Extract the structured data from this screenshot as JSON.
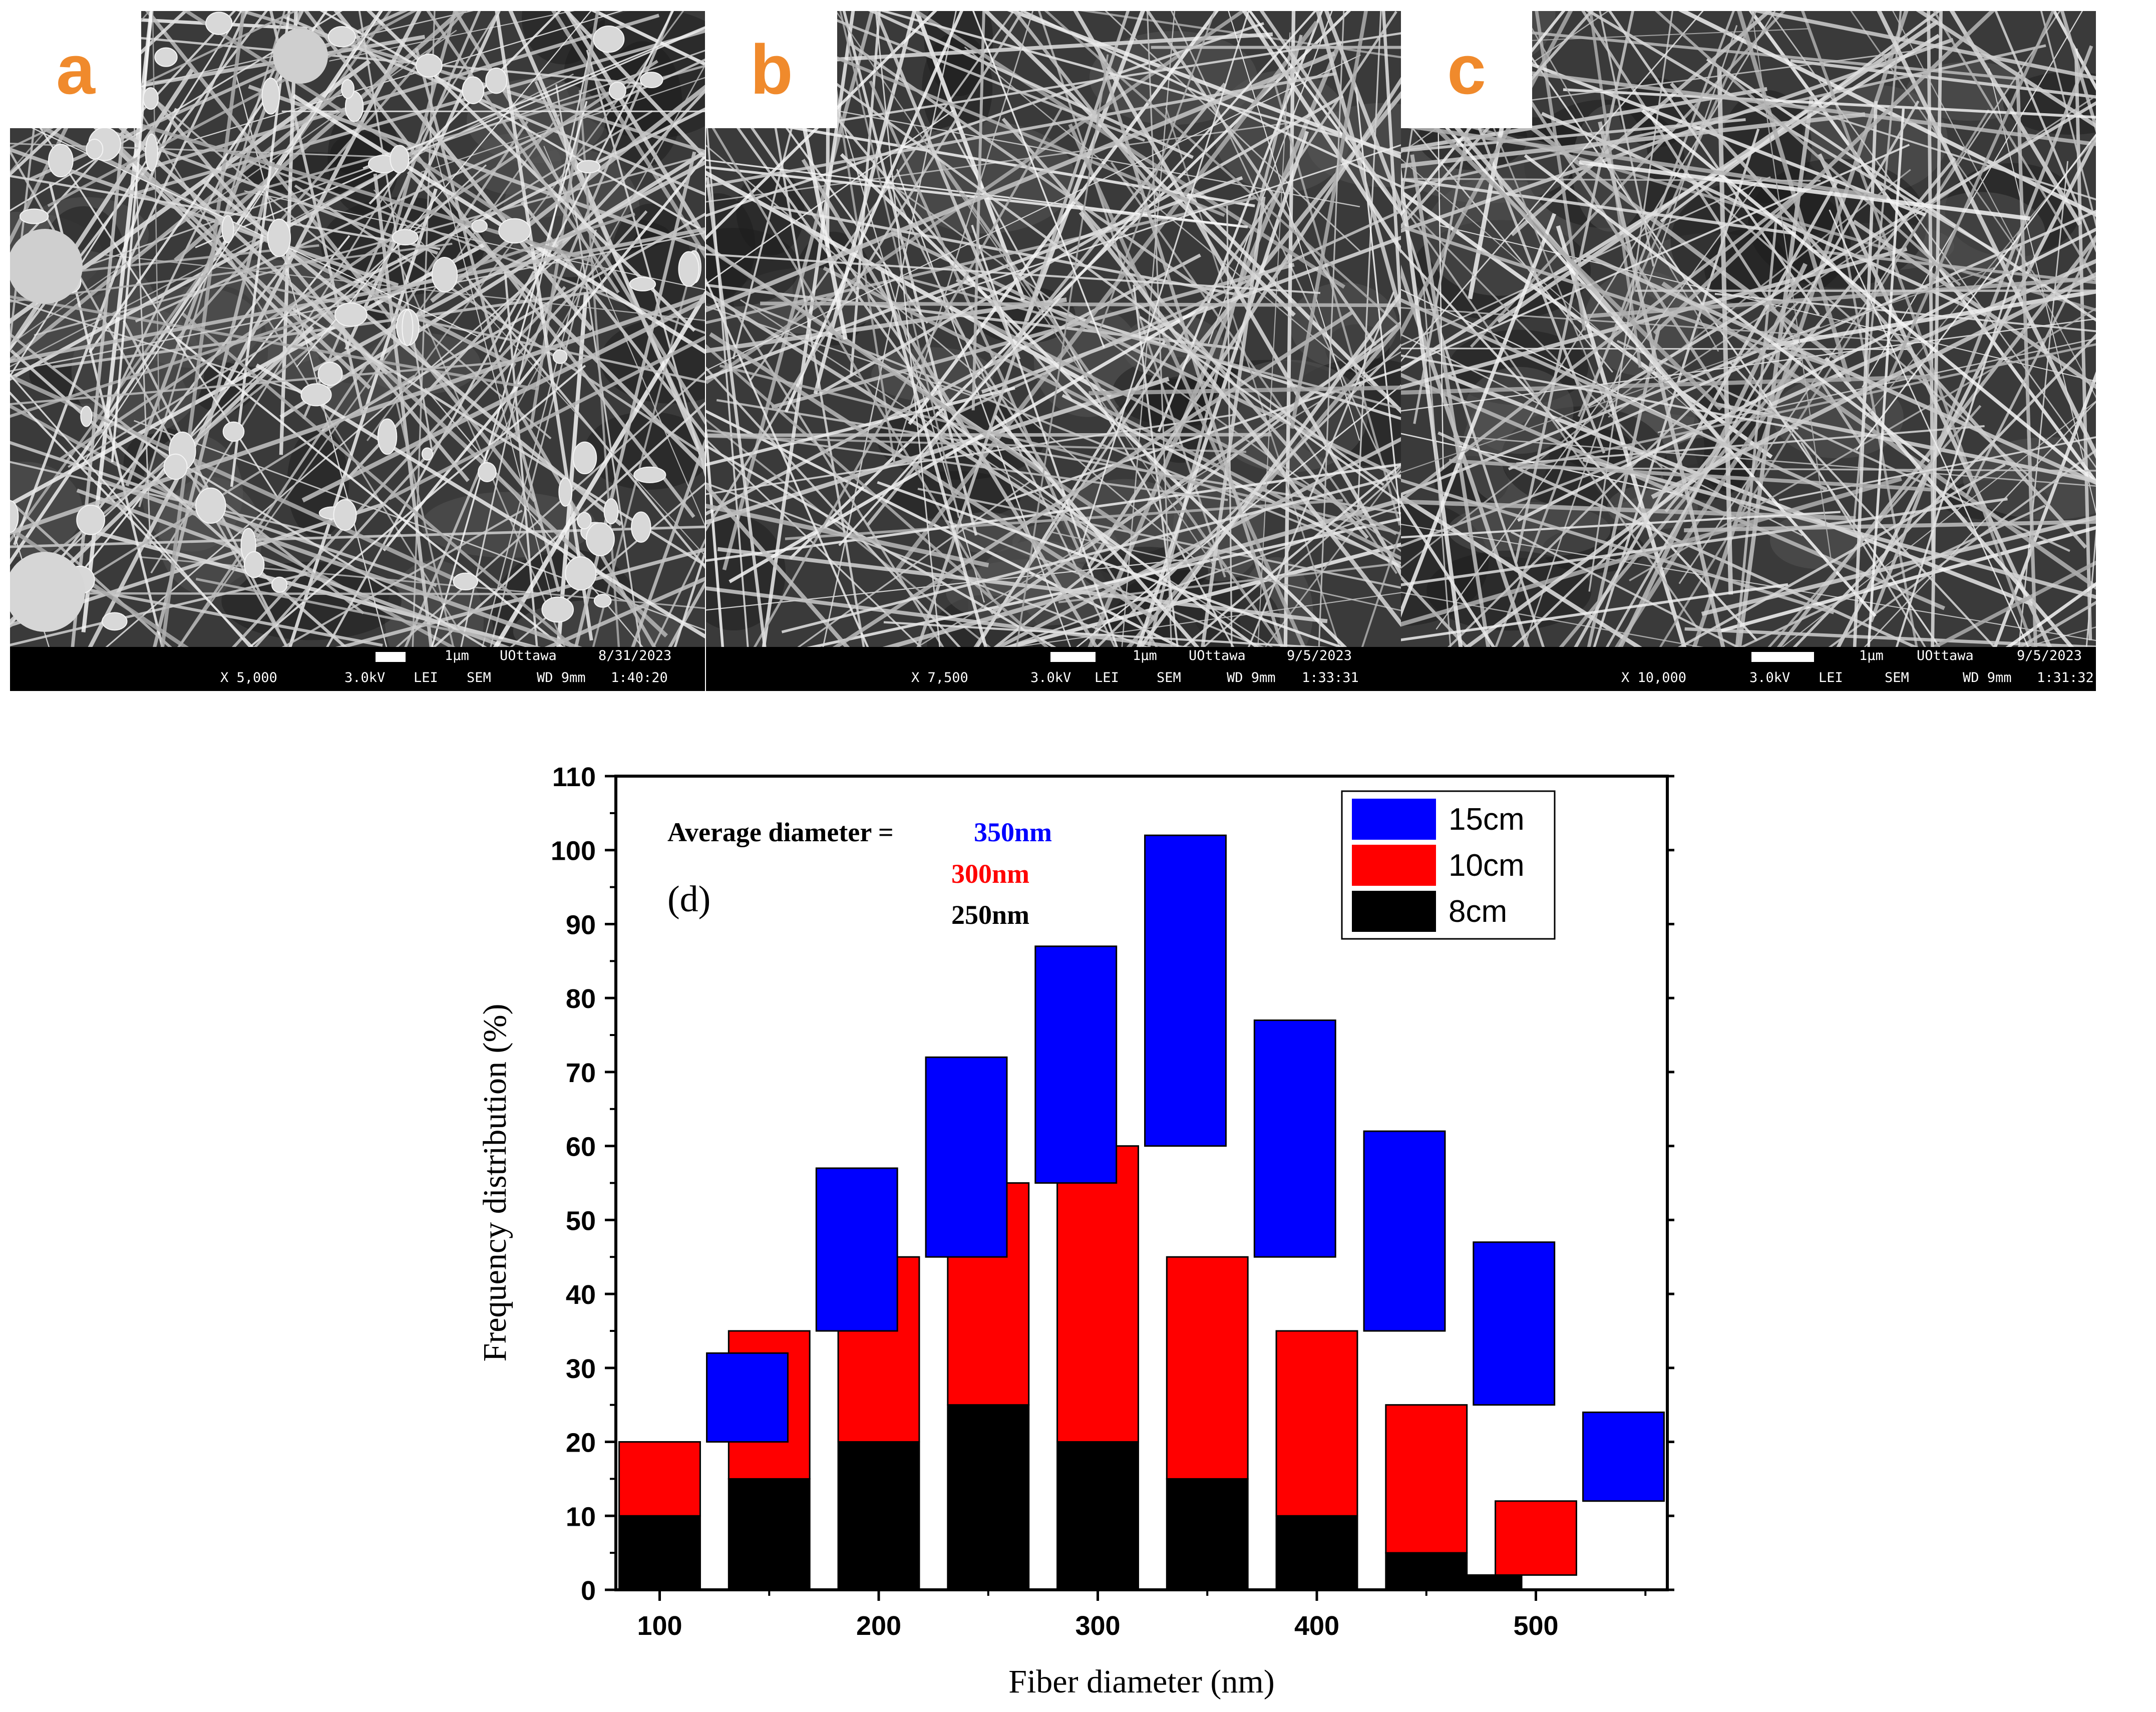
{
  "panels": [
    {
      "label": "a",
      "scale": "1μm",
      "institution": "UOttawa",
      "date": "8/31/2023",
      "magnification": "X 5,000",
      "voltage": "3.0kV",
      "detector": "LEI",
      "mode": "SEM",
      "wd": "WD 9mm",
      "time": "1:40:20"
    },
    {
      "label": "b",
      "scale": "1μm",
      "institution": "UOttawa",
      "date": "9/5/2023",
      "magnification": "X 7,500",
      "voltage": "3.0kV",
      "detector": "LEI",
      "mode": "SEM",
      "wd": "WD 9mm",
      "time": "1:33:31"
    },
    {
      "label": "c",
      "scale": "1μm",
      "institution": "UOttawa",
      "date": "9/5/2023",
      "magnification": "X 10,000",
      "voltage": "3.0kV",
      "detector": "LEI",
      "mode": "SEM",
      "wd": "WD 9mm",
      "time": "1:31:32"
    }
  ],
  "chart_data": {
    "type": "bar",
    "title": "",
    "panel_label": "(d)",
    "xlabel": "Fiber diameter (nm)",
    "ylabel": "Frequency distribution (%)",
    "xlim": [
      80,
      560
    ],
    "ylim": [
      0,
      110
    ],
    "xticks": [
      "100",
      "200",
      "300",
      "400",
      "500"
    ],
    "yticks": [
      "0",
      "10",
      "20",
      "30",
      "40",
      "50",
      "60",
      "70",
      "80",
      "90",
      "100",
      "110"
    ],
    "grid": false,
    "legend_position": "top-right",
    "annotation": {
      "label": "Average diameter =",
      "values": [
        "350nm",
        "300nm",
        "250nm"
      ]
    },
    "series": [
      {
        "name": "15cm",
        "color": "#0000ff",
        "bars": [
          {
            "x": 140,
            "low": 20,
            "high": 32
          },
          {
            "x": 190,
            "low": 35,
            "high": 57
          },
          {
            "x": 240,
            "low": 45,
            "high": 72
          },
          {
            "x": 290,
            "low": 55,
            "high": 87
          },
          {
            "x": 340,
            "low": 60,
            "high": 102
          },
          {
            "x": 390,
            "low": 45,
            "high": 77
          },
          {
            "x": 440,
            "low": 35,
            "high": 62
          },
          {
            "x": 490,
            "low": 25,
            "high": 47
          },
          {
            "x": 540,
            "low": 12,
            "high": 24
          }
        ]
      },
      {
        "name": "10cm",
        "color": "#ff0000",
        "bars": [
          {
            "x": 100,
            "low": 10,
            "high": 20
          },
          {
            "x": 150,
            "low": 15,
            "high": 35
          },
          {
            "x": 200,
            "low": 20,
            "high": 45
          },
          {
            "x": 250,
            "low": 25,
            "high": 55
          },
          {
            "x": 300,
            "low": 20,
            "high": 60
          },
          {
            "x": 350,
            "low": 15,
            "high": 45
          },
          {
            "x": 400,
            "low": 10,
            "high": 35
          },
          {
            "x": 450,
            "low": 5,
            "high": 25
          },
          {
            "x": 500,
            "low": 2,
            "high": 12
          }
        ]
      },
      {
        "name": "8cm",
        "color": "#000000",
        "bars": [
          {
            "x": 100,
            "low": 0,
            "high": 10
          },
          {
            "x": 150,
            "low": 0,
            "high": 15
          },
          {
            "x": 200,
            "low": 0,
            "high": 20
          },
          {
            "x": 250,
            "low": 0,
            "high": 25
          },
          {
            "x": 300,
            "low": 0,
            "high": 20
          },
          {
            "x": 350,
            "low": 0,
            "high": 15
          },
          {
            "x": 400,
            "low": 0,
            "high": 10
          },
          {
            "x": 450,
            "low": 0,
            "high": 5
          },
          {
            "x": 475,
            "low": 0,
            "high": 2
          }
        ]
      }
    ]
  }
}
